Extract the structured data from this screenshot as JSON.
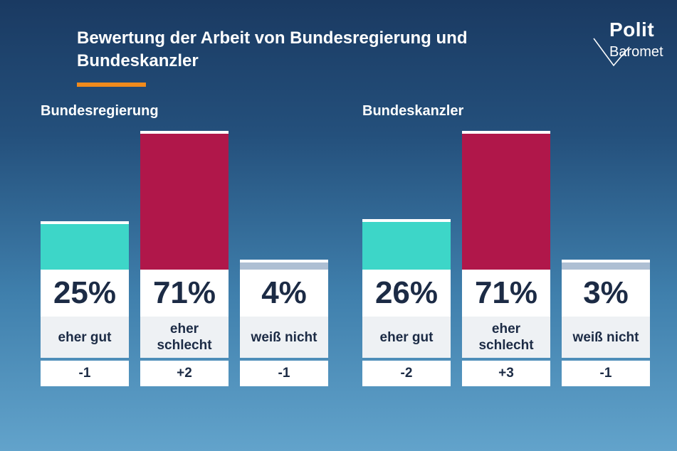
{
  "title": "Bewertung der Arbeit von Bundesregierung und Bundeskanzler",
  "logo": {
    "line1": "Polit",
    "line2": "Baromet"
  },
  "colors": {
    "positive": "#3dd6c8",
    "negative": "#b0174a",
    "unknown": "#aebfd3",
    "accent": "#f08a1c"
  },
  "chart_data": [
    {
      "type": "bar",
      "title": "Bundesregierung",
      "categories": [
        "eher gut",
        "eher schlecht",
        "weiß nicht"
      ],
      "values": [
        25,
        71,
        4
      ],
      "value_labels": [
        "25%",
        "71%",
        "4%"
      ],
      "changes": [
        "-1",
        "+2",
        "-1"
      ],
      "ylim": [
        0,
        100
      ]
    },
    {
      "type": "bar",
      "title": "Bundeskanzler",
      "categories": [
        "eher gut",
        "eher schlecht",
        "weiß nicht"
      ],
      "values": [
        26,
        71,
        3
      ],
      "value_labels": [
        "26%",
        "71%",
        "3%"
      ],
      "changes": [
        "-2",
        "+3",
        "-1"
      ],
      "ylim": [
        0,
        100
      ]
    }
  ]
}
